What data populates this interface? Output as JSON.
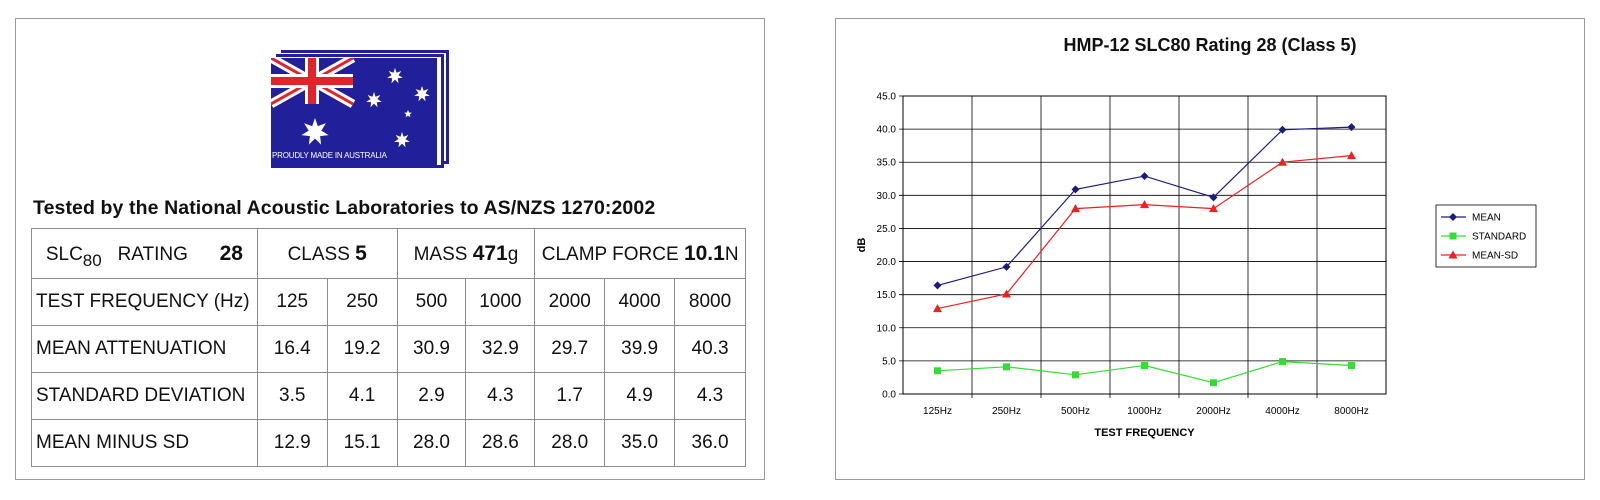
{
  "left": {
    "flag_caption": "PROUDLY MADE IN AUSTRALIA",
    "tested_title": "Tested by the National Acoustic Laboratories to AS/NZS 1270:2002",
    "header": {
      "slc_prefix": "SLC",
      "slc_sub": "80",
      "rating_label": "RATING",
      "rating_value": "28",
      "class_label": "CLASS",
      "class_value": "5",
      "mass_label": "MASS",
      "mass_value": "471",
      "mass_unit": "g",
      "clamp_label": "CLAMP FORCE",
      "clamp_value": "10.1",
      "clamp_unit": "N"
    },
    "rows": [
      {
        "label": "TEST FREQUENCY (Hz)",
        "values": [
          "125",
          "250",
          "500",
          "1000",
          "2000",
          "4000",
          "8000"
        ]
      },
      {
        "label": "MEAN ATTENUATION",
        "values": [
          "16.4",
          "19.2",
          "30.9",
          "32.9",
          "29.7",
          "39.9",
          "40.3"
        ]
      },
      {
        "label": "STANDARD DEVIATION",
        "values": [
          "3.5",
          "4.1",
          "2.9",
          "4.3",
          "1.7",
          "4.9",
          "4.3"
        ]
      },
      {
        "label": "MEAN MINUS SD",
        "values": [
          "12.9",
          "15.1",
          "28.0",
          "28.6",
          "28.0",
          "35.0",
          "36.0"
        ]
      }
    ]
  },
  "colors": {
    "flag_blue": "#21209a",
    "flag_red": "#e4222b",
    "mean": "#1c1c80",
    "standard": "#33dd33",
    "mean_sd": "#ee2020"
  },
  "chart_data": {
    "type": "line",
    "title": "HMP-12 SLC80 Rating 28 (Class 5)",
    "xlabel": "TEST FREQUENCY",
    "ylabel": "dB",
    "categories": [
      "125Hz",
      "250Hz",
      "500Hz",
      "1000Hz",
      "2000Hz",
      "4000Hz",
      "8000Hz"
    ],
    "ylim": [
      0,
      45
    ],
    "ytick_step": 5,
    "ytick_labels": [
      "0.0",
      "5.0",
      "10.0",
      "15.0",
      "20.0",
      "25.0",
      "30.0",
      "35.0",
      "40.0",
      "45.0"
    ],
    "grid": true,
    "legend_position": "right",
    "series": [
      {
        "name": "MEAN",
        "marker": "diamond",
        "color": "#1c1c80",
        "values": [
          16.4,
          19.2,
          30.9,
          32.9,
          29.7,
          39.9,
          40.3
        ]
      },
      {
        "name": "STANDARD",
        "marker": "square",
        "color": "#33dd33",
        "values": [
          3.5,
          4.1,
          2.9,
          4.3,
          1.7,
          4.9,
          4.3
        ]
      },
      {
        "name": "MEAN-SD",
        "marker": "triangle",
        "color": "#ee2020",
        "values": [
          12.9,
          15.1,
          28.0,
          28.6,
          28.0,
          35.0,
          36.0
        ]
      }
    ]
  }
}
